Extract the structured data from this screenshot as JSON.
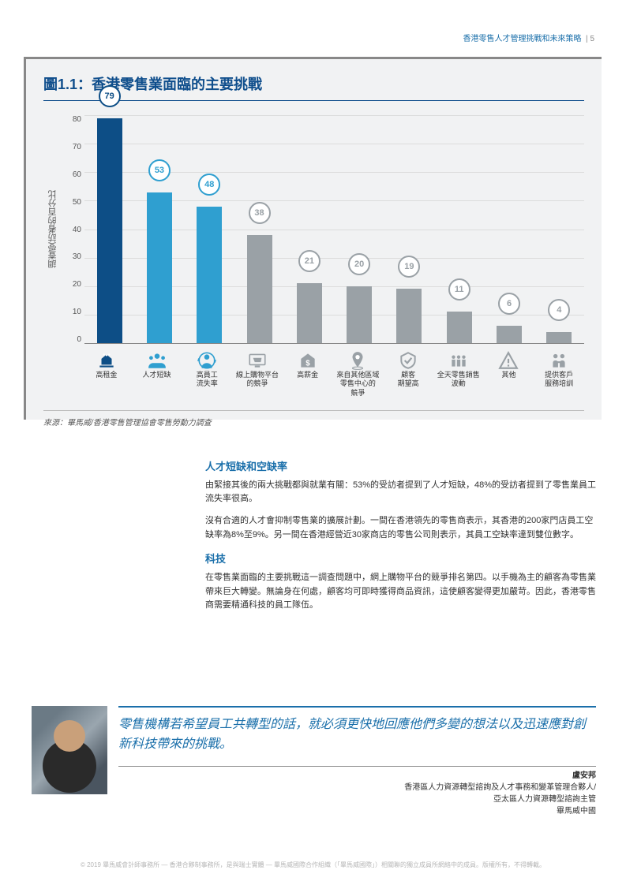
{
  "header": {
    "title": "香港零售人才管理挑戰和未來策略",
    "page": "5"
  },
  "chart": {
    "type": "bar",
    "title": "圖1.1：香港零售業面臨的主要挑戰",
    "yaxis_label": "調查受訪者的百分比",
    "ymax": 80,
    "ystep": 10,
    "yticks": [
      "80",
      "70",
      "60",
      "50",
      "40",
      "30",
      "20",
      "10",
      "0"
    ],
    "background": "#f1f2f3",
    "grid_color": "#dcdcdc",
    "source": "來源：畢馬威/香港零售管理協會零售勞動力調查",
    "primary_colors": [
      "#0d4e86",
      "#2f9fd0",
      "#2f9fd0"
    ],
    "secondary_color": "#9aa1a6",
    "items": [
      {
        "label": "高租金",
        "value": 79,
        "color": "#0d4e86",
        "icon": "rent"
      },
      {
        "label": "人才短缺",
        "value": 53,
        "color": "#2f9fd0",
        "icon": "people"
      },
      {
        "label": "高員工\n流失率",
        "value": 48,
        "color": "#2f9fd0",
        "icon": "turnover"
      },
      {
        "label": "線上購物平台\n的競爭",
        "value": 38,
        "color": "#9aa1a6",
        "icon": "online"
      },
      {
        "label": "高薪金",
        "value": 21,
        "color": "#9aa1a6",
        "icon": "salary"
      },
      {
        "label": "來自其他區域\n零售中心的\n競爭",
        "value": 20,
        "color": "#9aa1a6",
        "icon": "location"
      },
      {
        "label": "顧客\n期望高",
        "value": 19,
        "color": "#9aa1a6",
        "icon": "expect"
      },
      {
        "label": "全天零售銷售\n波動",
        "value": 11,
        "color": "#9aa1a6",
        "icon": "group"
      },
      {
        "label": "其他",
        "value": 6,
        "color": "#9aa1a6",
        "icon": "warn"
      },
      {
        "label": "提供客戶\n服務培訓",
        "value": 4,
        "color": "#9aa1a6",
        "icon": "train"
      }
    ]
  },
  "sections": [
    {
      "title": "人才短缺和空缺率",
      "paras": [
        "由緊接其後的兩大挑戰都與就業有關：53%的受訪者提到了人才短缺，48%的受訪者提到了零售業員工流失率很高。",
        "沒有合適的人才會抑制零售業的擴展計劃。一間在香港領先的零售商表示，其香港的200家門店員工空缺率為8%至9%。另一間在香港經營近30家商店的零售公司則表示，其員工空缺率達到雙位數字。"
      ]
    },
    {
      "title": "科技",
      "paras": [
        "在零售業面臨的主要挑戰這一調查問題中，網上購物平台的競爭排名第四。以手機為主的顧客為零售業帶來巨大轉變。無論身在何處，顧客均可即時獲得商品資訊，這使顧客變得更加嚴苛。因此，香港零售商需要精通科技的員工隊伍。"
      ]
    }
  ],
  "quote": {
    "text": "零售機構若希望員工共轉型的話，就必須更快地回應他們多變的想法以及迅速應對創新科技帶來的挑戰。",
    "name": "盧安邦",
    "title1": "香港區人力資源轉型諮詢及人才事務和變革管理合夥人/",
    "title2": "亞太區人力資源轉型諮詢主管",
    "org": "畢馬威中國"
  },
  "footer": "© 2019 畢馬威會計師事務所 — 香港合夥制事務所，是與瑞士實體 — 畢馬威國際合作組織（「畢馬威國際」）相關聯的獨立成員所網絡中的成員。版權所有，不得轉載。"
}
